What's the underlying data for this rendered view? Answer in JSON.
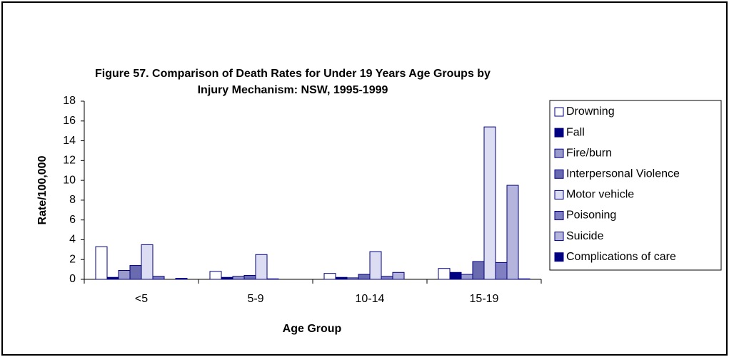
{
  "chart_data": {
    "type": "bar",
    "title": "Figure 57.  Comparison of Death Rates for Under 19 Years Age Groups by",
    "subtitle": "Injury Mechanism: NSW, 1995-1999",
    "x_label": "Age Group",
    "y_label": "Rate/100,000",
    "categories": [
      "<5",
      "5-9",
      "10-14",
      "15-19"
    ],
    "series": [
      {
        "name": "Drowning",
        "color": "#ffffff",
        "values": [
          3.3,
          0.8,
          0.6,
          1.1
        ]
      },
      {
        "name": "Fall",
        "color": "#000080",
        "values": [
          0.2,
          0.2,
          0.2,
          0.7
        ]
      },
      {
        "name": "Fire/burn",
        "color": "#9a9acc",
        "values": [
          0.9,
          0.3,
          0.15,
          0.5
        ]
      },
      {
        "name": "Interpersonal Violence",
        "color": "#6a6ab0",
        "values": [
          1.4,
          0.4,
          0.5,
          1.8
        ]
      },
      {
        "name": "Motor vehicle",
        "color": "#dcdcf2",
        "values": [
          3.5,
          2.5,
          2.8,
          15.4
        ]
      },
      {
        "name": "Poisoning",
        "color": "#7f7fc2",
        "values": [
          0.3,
          0.05,
          0.3,
          1.7
        ]
      },
      {
        "name": "Suicide",
        "color": "#b4b4dc",
        "values": [
          0,
          0,
          0.7,
          9.5
        ]
      },
      {
        "name": "Complications of care",
        "color": "#000080",
        "values": [
          0.1,
          0,
          0,
          0.05
        ]
      }
    ],
    "ylim": [
      0,
      18
    ],
    "yticks": [
      0,
      2,
      4,
      6,
      8,
      10,
      12,
      14,
      16,
      18
    ],
    "legend": "right"
  }
}
